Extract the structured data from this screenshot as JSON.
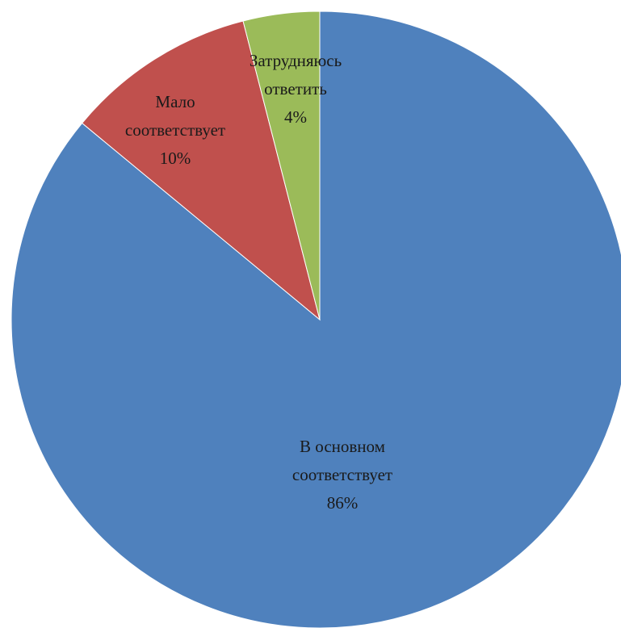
{
  "chart_data": {
    "type": "pie",
    "title": "",
    "start_angle_deg": 0,
    "direction": "clockwise",
    "slices": [
      {
        "label_lines": [
          "В основном",
          "соответствует"
        ],
        "percent_label": "86%",
        "value": 86,
        "color": "#4f81bd"
      },
      {
        "label_lines": [
          "Мало",
          "соответствует"
        ],
        "percent_label": "10%",
        "value": 10,
        "color": "#c0504d"
      },
      {
        "label_lines": [
          "Затрудняюсь",
          "ответить"
        ],
        "percent_label": "4%",
        "value": 4,
        "color": "#9bbb59"
      }
    ]
  }
}
